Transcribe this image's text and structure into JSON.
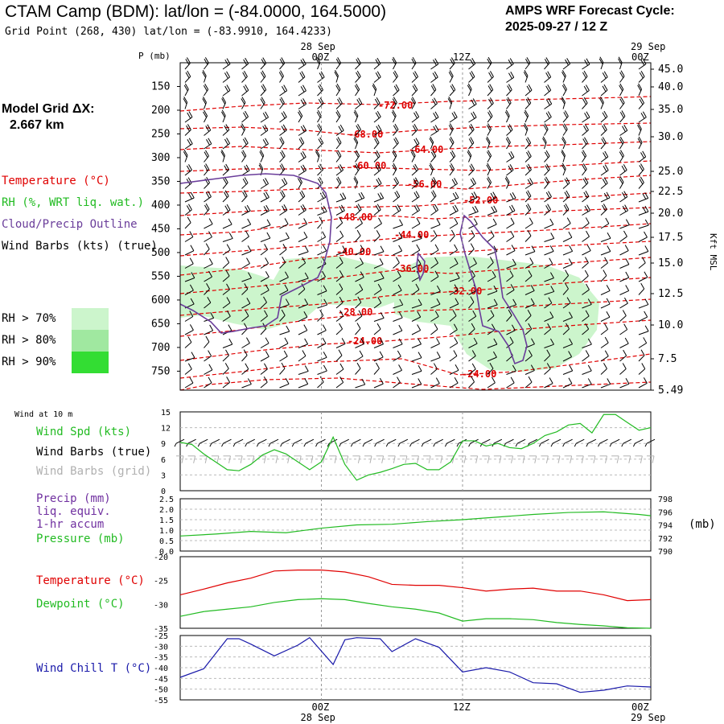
{
  "header": {
    "title": "CTAM Camp (BDM):  lat/lon = (-84.0000, 164.5000)",
    "subtitle": "Grid Point (268, 430) lat/lon = (-83.9910, 164.4233)",
    "cycle_line1": "AMPS WRF Forecast Cycle:",
    "cycle_line2": "2025-09-27 / 12  Z"
  },
  "left_panel": {
    "grid_line1": "Model Grid ΔX:",
    "grid_line2": "2.667 km",
    "temperature_label": "Temperature (°C)",
    "rh_label": "RH (%, WRT liq. wat.)",
    "cloud_label": "Cloud/Precip Outline",
    "wind_label": "Wind Barbs (kts) (true)",
    "rh_legend": [
      "RH > 70%",
      "RH > 80%",
      "RH > 90%"
    ]
  },
  "colors": {
    "temperature": "#e00000",
    "rh70": "#ccf5cc",
    "rh80": "#a0e8a0",
    "rh90": "#33dd33",
    "cloud": "#6a3d9a",
    "wind_spd": "#22bb22",
    "wind_grid": "#b0b0b0",
    "precip_label": "#7030a0",
    "pressure": "#22bb22",
    "dewpoint": "#22bb22",
    "wind_chill": "#1a1aaa"
  },
  "time_axis": {
    "top_dates": [
      "28 Sep",
      "29 Sep"
    ],
    "ticks": [
      "00Z",
      "12Z",
      "00Z"
    ],
    "bottom_dates": [
      "28 Sep",
      "29 Sep"
    ]
  },
  "chart_data": [
    {
      "type": "line",
      "panel": "cross-section",
      "ylabel": "P (mb)",
      "y2label": "Kft MSL",
      "pressure_ticks": [
        150,
        200,
        250,
        300,
        350,
        400,
        450,
        500,
        550,
        600,
        650,
        700,
        750
      ],
      "kft_ticks": [
        "45.0",
        "40.0",
        "35.0",
        "30.0",
        "25.0",
        "22.5",
        "20.0",
        "17.5",
        "15.0",
        "12.5",
        "10.0",
        "7.5",
        "5.49"
      ],
      "ylim": [
        100,
        790
      ],
      "temperature_contour_labels": [
        "-72.00",
        "-68.00",
        "-64.00",
        "-60.00",
        "-56.00",
        "-52.00",
        "-48.00",
        "-44.00",
        "-40.00",
        "-36.00",
        "-32.00",
        "-28.00",
        "-24.00",
        "-24.00"
      ]
    },
    {
      "type": "line",
      "panel": "wind-10m",
      "title": "Wind at 10 m",
      "series_labels": [
        "Wind Spd (kts)",
        "Wind Barbs (true)",
        "Wind Barbs (grid)"
      ],
      "ylim": [
        0,
        15
      ],
      "yticks": [
        0,
        3,
        6,
        9,
        12,
        15
      ],
      "x": [
        0,
        2,
        4,
        6,
        8,
        10,
        12,
        14,
        16,
        18,
        20,
        22,
        24,
        26,
        28,
        30,
        32,
        34,
        36,
        38,
        40,
        42,
        44,
        46,
        48,
        50,
        52,
        54,
        56,
        58,
        60,
        62,
        64,
        66,
        68,
        70,
        72,
        74,
        76,
        78,
        80
      ],
      "series": [
        {
          "name": "Wind Spd (kts)",
          "values": [
            9.2,
            8.8,
            7.0,
            5.5,
            4.0,
            3.8,
            5.0,
            6.8,
            7.8,
            7.0,
            5.5,
            4.0,
            5.5,
            10.2,
            5.0,
            2.0,
            3.0,
            3.5,
            4.2,
            5.0,
            5.2,
            4.0,
            4.0,
            5.5,
            9.5,
            9.5,
            8.5,
            9.0,
            8.2,
            8.0,
            9.0,
            10.5,
            11.2,
            12.5,
            12.8,
            11.0,
            14.5,
            14.5,
            13.0,
            11.5,
            12.0
          ]
        }
      ]
    },
    {
      "type": "line",
      "panel": "precip-pressure",
      "series_labels": [
        "Precip (mm)",
        "liq. equiv.",
        "1-hr accum",
        "Pressure (mb)"
      ],
      "y_left": [
        0.0,
        0.5,
        1.0,
        1.5,
        2.0,
        2.5
      ],
      "y_right": [
        790,
        792,
        794,
        796,
        798
      ],
      "y2label": "(mb)",
      "x": [
        0,
        6,
        12,
        18,
        24,
        30,
        36,
        42,
        48,
        54,
        60,
        66,
        72,
        78,
        80
      ],
      "series": [
        {
          "name": "Pressure (mb)",
          "values": [
            792.3,
            792.6,
            793.0,
            792.8,
            793.5,
            794.0,
            794.1,
            794.5,
            794.8,
            795.2,
            795.6,
            795.9,
            796.0,
            795.6,
            795.4
          ]
        }
      ]
    },
    {
      "type": "line",
      "panel": "temperature-dewpoint",
      "series_labels": [
        "Temperature (°C)",
        "Dewpoint (°C)"
      ],
      "ylim": [
        -35,
        -20
      ],
      "yticks": [
        -20,
        -25,
        -30,
        -35
      ],
      "x": [
        0,
        4,
        8,
        12,
        16,
        20,
        24,
        28,
        32,
        36,
        40,
        44,
        48,
        52,
        56,
        60,
        64,
        68,
        72,
        76,
        80
      ],
      "series": [
        {
          "name": "Temperature (°C)",
          "values": [
            -28.0,
            -26.8,
            -25.5,
            -24.5,
            -23.0,
            -22.8,
            -22.8,
            -23.2,
            -24.2,
            -25.8,
            -26.0,
            -26.0,
            -26.5,
            -27.2,
            -26.8,
            -26.6,
            -27.2,
            -27.2,
            -28.0,
            -29.2,
            -29.0
          ]
        },
        {
          "name": "Dewpoint (°C)",
          "values": [
            -32.5,
            -31.5,
            -31.0,
            -30.5,
            -29.6,
            -29.0,
            -28.8,
            -29.0,
            -29.8,
            -30.5,
            -31.0,
            -31.8,
            -33.5,
            -33.0,
            -33.0,
            -33.2,
            -33.8,
            -34.2,
            -34.5,
            -34.9,
            -35.0
          ]
        }
      ]
    },
    {
      "type": "line",
      "panel": "wind-chill",
      "series_labels": [
        "Wind Chill T (°C)"
      ],
      "ylim": [
        -55,
        -25
      ],
      "yticks": [
        -25,
        -30,
        -35,
        -40,
        -45,
        -50,
        -55
      ],
      "x": [
        0,
        4,
        8,
        10,
        12,
        16,
        20,
        22,
        26,
        28,
        30,
        34,
        36,
        40,
        44,
        48,
        52,
        56,
        60,
        64,
        68,
        72,
        76,
        80
      ],
      "series": [
        {
          "name": "Wind Chill T (°C)",
          "values": [
            -44.5,
            -40.5,
            -26.5,
            -26.5,
            -29.0,
            -34.5,
            -29.5,
            -26.0,
            -38.5,
            -27.0,
            -26.0,
            -26.5,
            -32.5,
            -26.5,
            -30.5,
            -42.0,
            -40.0,
            -42.0,
            -47.0,
            -47.5,
            -51.5,
            -50.5,
            -48.5,
            -49.0
          ]
        }
      ]
    }
  ]
}
